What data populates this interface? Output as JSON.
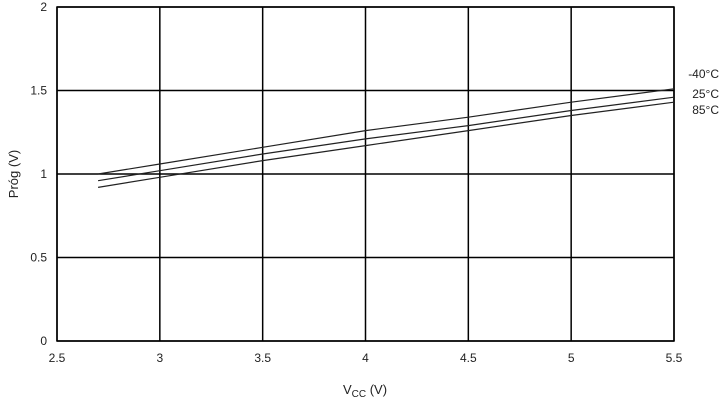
{
  "chart_data": {
    "type": "line",
    "xlabel_main": "V",
    "xlabel_sub": "CC",
    "xlabel_unit": " (V)",
    "ylabel": "Próg (V)",
    "xlim": [
      2.5,
      5.5
    ],
    "ylim": [
      0,
      2
    ],
    "xticks": [
      "2.5",
      "3",
      "3.5",
      "4",
      "4.5",
      "5",
      "5.5"
    ],
    "yticks": [
      "0",
      "0.5",
      "1",
      "1.5",
      "2"
    ],
    "grid": true,
    "series": [
      {
        "name": "-40°C",
        "x": [
          2.7,
          3.0,
          3.5,
          4.0,
          4.5,
          5.0,
          5.5
        ],
        "y": [
          1.0,
          1.06,
          1.16,
          1.26,
          1.34,
          1.43,
          1.51
        ]
      },
      {
        "name": "25°C",
        "x": [
          2.7,
          3.0,
          3.5,
          4.0,
          4.5,
          5.0,
          5.5
        ],
        "y": [
          0.96,
          1.02,
          1.12,
          1.21,
          1.29,
          1.38,
          1.46
        ]
      },
      {
        "name": "85°C",
        "x": [
          2.7,
          3.0,
          3.5,
          4.0,
          4.5,
          5.0,
          5.5
        ],
        "y": [
          0.92,
          0.98,
          1.08,
          1.17,
          1.26,
          1.35,
          1.43
        ]
      }
    ]
  }
}
